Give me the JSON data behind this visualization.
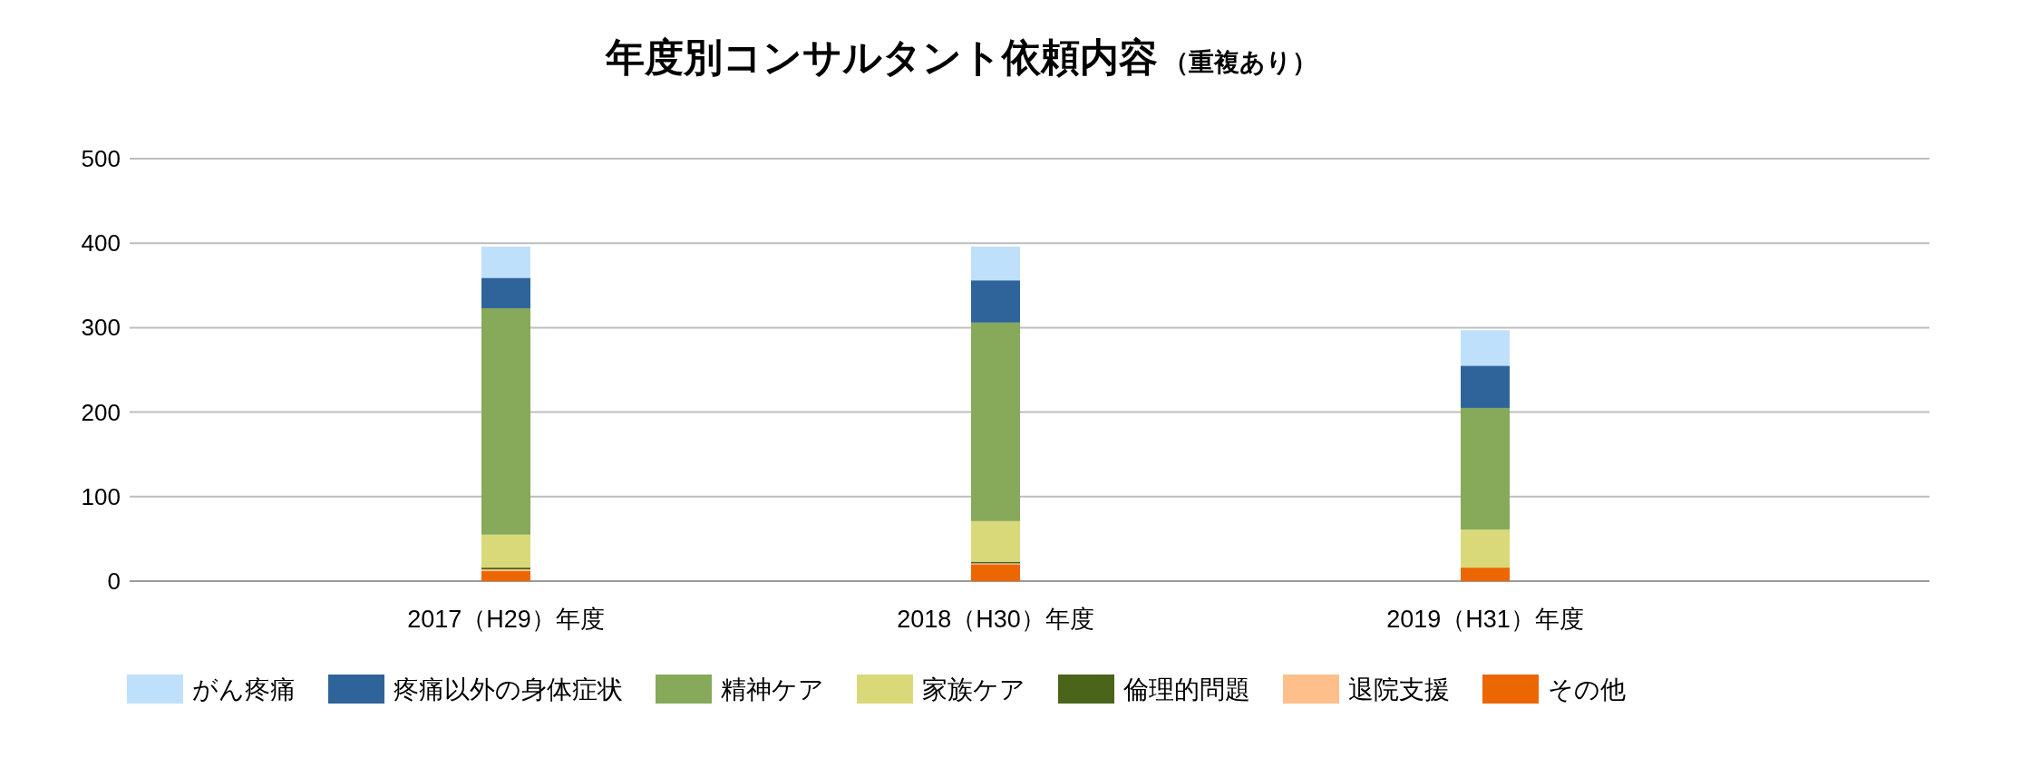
{
  "chart_data": {
    "type": "bar",
    "stacked": true,
    "title": "年度別コンサルタント依頼内容",
    "subtitle": "（重複あり）",
    "categories": [
      "2017（H29）年度",
      "2018（H30）年度",
      "2019（H31）年度"
    ],
    "series": [
      {
        "name": "その他",
        "color": "#ec6602",
        "values": [
          12,
          20,
          16
        ]
      },
      {
        "name": "退院支援",
        "color": "#ffbf8a",
        "values": [
          2,
          1,
          0
        ]
      },
      {
        "name": "倫理的問題",
        "color": "#4a6419",
        "values": [
          2,
          2,
          0
        ]
      },
      {
        "name": "家族ケア",
        "color": "#d9d979",
        "values": [
          39,
          48,
          45
        ]
      },
      {
        "name": "精神ケア",
        "color": "#86a95a",
        "values": [
          268,
          235,
          144
        ]
      },
      {
        "name": "疼痛以外の身体症状",
        "color": "#2e649a",
        "values": [
          36,
          50,
          50
        ]
      },
      {
        "name": "がん疼痛",
        "color": "#bfe0fb",
        "values": [
          37,
          40,
          42
        ]
      }
    ],
    "ylim": [
      0,
      500
    ],
    "yticks": [
      0,
      100,
      200,
      300,
      400,
      500
    ],
    "grid": "y",
    "legend": "bottom"
  }
}
